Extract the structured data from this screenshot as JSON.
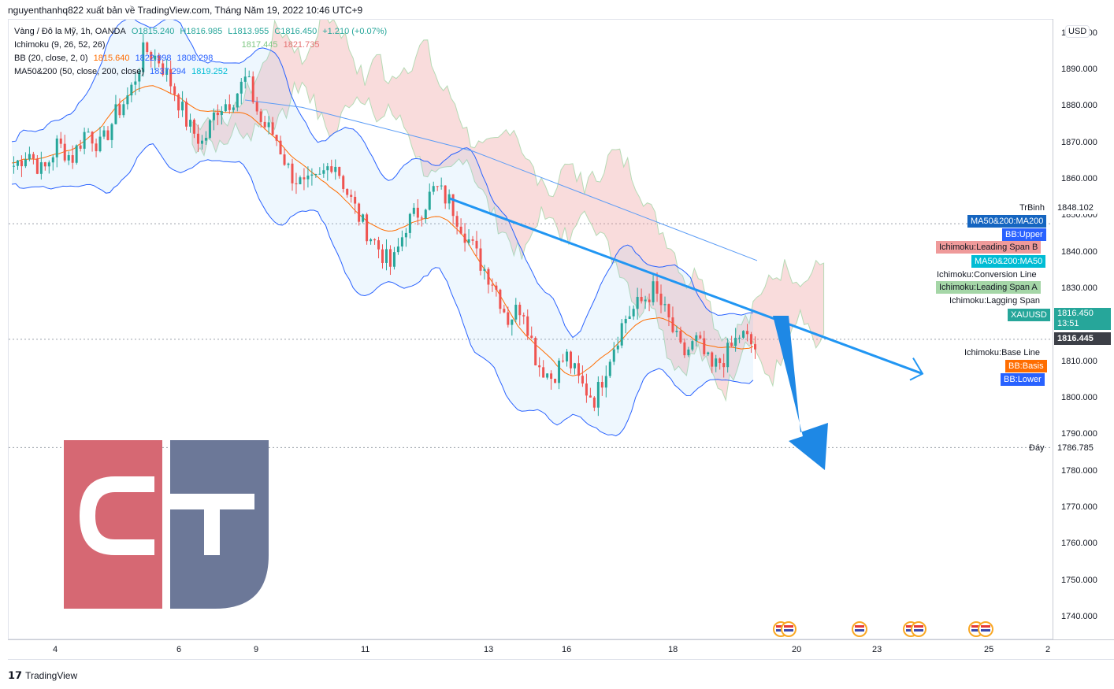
{
  "header": {
    "publisher": "nguyenthanhq822 xuất bản về TradingView.com, Tháng Năm 19, 2022 10:46 UTC+9"
  },
  "legend": {
    "symbol": "Vàng / Đô la Mỹ, 1h, OANDA",
    "ohlc": {
      "o": "O1815.240",
      "h": "H1816.985",
      "l": "L1813.955",
      "c": "C1816.450",
      "chg": "+1.210 (+0.07%)"
    },
    "ichimoku": {
      "name": "Ichimoku (9, 26, 52, 26)",
      "v1": "1817.445",
      "v2": "1821.735"
    },
    "bb": {
      "name": "BB (20, close, 2, 0)",
      "v1": "1815.640",
      "v2": "1822.998",
      "v3": "1808.298"
    },
    "ma": {
      "name": "MA50&200 (50, close, 200, close)",
      "v1": "1837.294",
      "v2": "1819.252"
    }
  },
  "currency": "USD",
  "right_tags": {
    "high_label": "TrBinh",
    "high_value": "1848.102",
    "low_label": "Đáy",
    "low_value": "1786.785",
    "ma200": "MA50&200:MA200",
    "bb_upper": "BB:Upper",
    "leading_b": "Ichimoku:Leading Span B",
    "ma50": "MA50&200:MA50",
    "conversion": "Ichimoku:Conversion Line",
    "leading_a": "Ichimoku:Leading Span A",
    "lagging": "Ichimoku:Lagging Span",
    "symbol": "XAUUSD",
    "price": "1816.450",
    "countdown": "13:51",
    "price2": "1816.445",
    "base_line": "Ichimoku:Base Line",
    "bb_basis": "BB:Basis",
    "bb_lower": "BB:Lower"
  },
  "colors": {
    "bull": "#26a69a",
    "bear": "#ef5350",
    "bb": "#2962ff",
    "trend": "#2196f3",
    "ma200": "#5b9cf6",
    "ma50": "#7fd6e6",
    "basis": "#ff6d00",
    "span_b": "#ef9a9a",
    "span_a": "#a5d6a7",
    "logo_red": "#d66873",
    "logo_blue": "#6c7898"
  },
  "footer": {
    "brand": "TradingView"
  },
  "chart_data": {
    "type": "candlestick",
    "y_ticks": [
      "1740.000",
      "1750.000",
      "1760.000",
      "1770.000",
      "1780.000",
      "1790.000",
      "1800.000",
      "1810.000",
      "1820.000",
      "1830.000",
      "1840.000",
      "1850.000",
      "1860.000",
      "1870.000",
      "1880.000",
      "1890.000",
      "1900.000"
    ],
    "x_ticks": [
      "4",
      "6",
      "9",
      "11",
      "13",
      "16",
      "18",
      "20",
      "23",
      "25",
      "2"
    ],
    "ylim": [
      1734,
      1904
    ],
    "close_path": [
      1864,
      1868,
      1862,
      1870,
      1866,
      1874,
      1869,
      1878,
      1884,
      1896,
      1893,
      1885,
      1875,
      1870,
      1880,
      1882,
      1888,
      1876,
      1872,
      1862,
      1858,
      1860,
      1866,
      1856,
      1848,
      1842,
      1836,
      1848,
      1852,
      1858,
      1854,
      1846,
      1838,
      1832,
      1822,
      1826,
      1810,
      1806,
      1812,
      1804,
      1800,
      1812,
      1822,
      1826,
      1830,
      1822,
      1812,
      1816,
      1808,
      1812,
      1818,
      1814
    ],
    "ma200": [
      1882,
      1880,
      1876,
      1872,
      1868,
      1862,
      1856,
      1850,
      1844,
      1838
    ],
    "trend_line": {
      "from": [
        1855,
        1840
      ],
      "to": [
        1800,
        1807
      ]
    },
    "horizontal_levels": [
      1848.102,
      1816.445,
      1786.785
    ],
    "last_price": 1816.45
  }
}
